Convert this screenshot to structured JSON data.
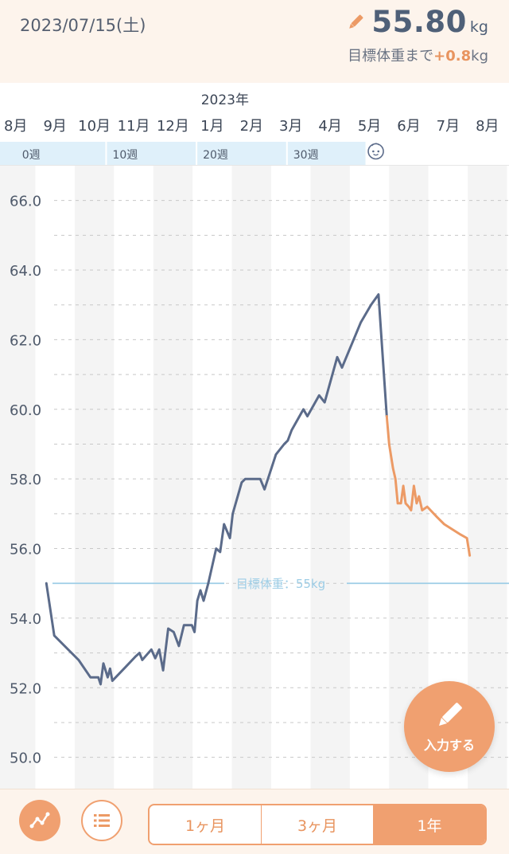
{
  "header": {
    "date": "2023/07/15(土)",
    "current_weight": "55.80",
    "weight_unit": "kg",
    "target_prefix": "目標体重まで",
    "target_diff": "+0.8",
    "target_unit": "kg"
  },
  "chart_data": {
    "type": "line",
    "year_label": "2023年",
    "months": [
      {
        "label": "8月",
        "x": 0
      },
      {
        "label": "9月",
        "x": 1
      },
      {
        "label": "10月",
        "x": 2
      },
      {
        "label": "11月",
        "x": 3
      },
      {
        "label": "12月",
        "x": 4
      },
      {
        "label": "1月",
        "x": 5
      },
      {
        "label": "2月",
        "x": 6
      },
      {
        "label": "3月",
        "x": 7
      },
      {
        "label": "4月",
        "x": 8
      },
      {
        "label": "5月",
        "x": 9
      },
      {
        "label": "6月",
        "x": 10
      },
      {
        "label": "7月",
        "x": 11
      },
      {
        "label": "8月",
        "x": 12
      }
    ],
    "weeks": [
      {
        "label": "0週",
        "x": 0
      },
      {
        "label": "10週",
        "x": 2.3
      },
      {
        "label": "20週",
        "x": 4.6
      },
      {
        "label": "30週",
        "x": 6.9
      }
    ],
    "pregnancy_end_x": 9,
    "y_ticks": [
      66.0,
      64.0,
      62.0,
      60.0,
      58.0,
      56.0,
      54.0,
      52.0,
      50.0
    ],
    "ylim": [
      49.1,
      67.0
    ],
    "xlim": [
      -0.4,
      12.55
    ],
    "target_line": {
      "value": 55,
      "label": "目標体重：55kg"
    },
    "colors": {
      "pregnancy": "#5b6b8a",
      "postpartum": "#ec9a65",
      "target": "#9dcde6"
    },
    "series": [
      {
        "segment": "pregnancy",
        "points": [
          [
            0.78,
            55.0
          ],
          [
            0.98,
            53.5
          ],
          [
            1.6,
            52.8
          ],
          [
            1.9,
            52.3
          ],
          [
            2.1,
            52.3
          ],
          [
            2.16,
            52.1
          ],
          [
            2.23,
            52.7
          ],
          [
            2.34,
            52.3
          ],
          [
            2.4,
            52.55
          ],
          [
            2.46,
            52.2
          ],
          [
            2.8,
            52.6
          ],
          [
            3.05,
            52.9
          ],
          [
            3.15,
            53.0
          ],
          [
            3.22,
            52.8
          ],
          [
            3.45,
            53.1
          ],
          [
            3.55,
            52.85
          ],
          [
            3.65,
            53.1
          ],
          [
            3.75,
            52.5
          ],
          [
            3.88,
            53.7
          ],
          [
            4.02,
            53.6
          ],
          [
            4.15,
            53.2
          ],
          [
            4.28,
            53.8
          ],
          [
            4.48,
            53.8
          ],
          [
            4.55,
            53.6
          ],
          [
            4.62,
            54.5
          ],
          [
            4.7,
            54.8
          ],
          [
            4.78,
            54.5
          ],
          [
            4.9,
            55.0
          ],
          [
            5.1,
            56.0
          ],
          [
            5.2,
            55.9
          ],
          [
            5.3,
            56.7
          ],
          [
            5.45,
            56.3
          ],
          [
            5.52,
            57.0
          ],
          [
            5.75,
            57.9
          ],
          [
            5.84,
            58.0
          ],
          [
            6.22,
            58.0
          ],
          [
            6.33,
            57.7
          ],
          [
            6.62,
            58.7
          ],
          [
            6.83,
            59.0
          ],
          [
            6.92,
            59.1
          ],
          [
            7.02,
            59.4
          ],
          [
            7.32,
            60.0
          ],
          [
            7.42,
            59.8
          ],
          [
            7.72,
            60.4
          ],
          [
            7.86,
            60.2
          ],
          [
            8.18,
            61.5
          ],
          [
            8.3,
            61.2
          ],
          [
            8.78,
            62.5
          ],
          [
            9.04,
            63.0
          ],
          [
            9.23,
            63.3
          ],
          [
            9.44,
            59.8
          ]
        ]
      },
      {
        "segment": "postpartum",
        "points": [
          [
            9.44,
            59.8
          ],
          [
            9.5,
            59.0
          ],
          [
            9.6,
            58.3
          ],
          [
            9.66,
            58.0
          ],
          [
            9.72,
            57.3
          ],
          [
            9.8,
            57.3
          ],
          [
            9.86,
            57.8
          ],
          [
            9.92,
            57.3
          ],
          [
            10.0,
            57.2
          ],
          [
            10.06,
            57.1
          ],
          [
            10.13,
            57.8
          ],
          [
            10.2,
            57.3
          ],
          [
            10.26,
            57.5
          ],
          [
            10.34,
            57.1
          ],
          [
            10.47,
            57.2
          ],
          [
            10.72,
            56.9
          ],
          [
            10.9,
            56.7
          ],
          [
            11.32,
            56.4
          ],
          [
            11.48,
            56.3
          ],
          [
            11.55,
            55.8
          ]
        ]
      }
    ]
  },
  "fab": {
    "label": "入力する"
  },
  "footer": {
    "graph_icon": "line-graph-icon",
    "list_icon": "list-icon",
    "tabs": [
      "1ヶ月",
      "3ヶ月",
      "1年"
    ],
    "active_tab": "1年"
  }
}
